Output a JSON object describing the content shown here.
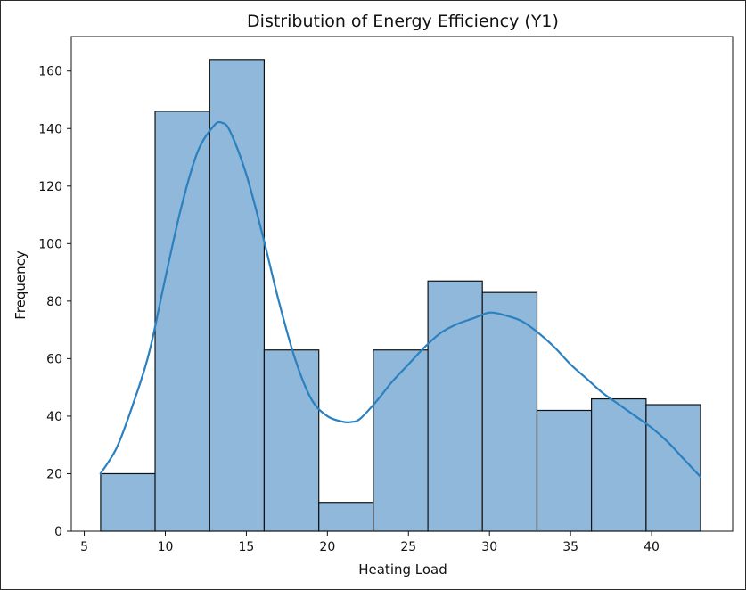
{
  "chart_data": {
    "type": "bar",
    "subtype": "histogram-with-kde",
    "title": "Distribution of Energy Efficiency (Y1)",
    "xlabel": "Heating Load",
    "ylabel": "Frequency",
    "xlim": [
      4.2,
      45.0
    ],
    "ylim": [
      0,
      172
    ],
    "xticks": [
      5,
      10,
      15,
      20,
      25,
      30,
      35,
      40
    ],
    "yticks": [
      0,
      20,
      40,
      60,
      80,
      100,
      120,
      140,
      160
    ],
    "bins": [
      {
        "start": 6.01,
        "end": 9.37,
        "count": 20
      },
      {
        "start": 9.37,
        "end": 12.74,
        "count": 146
      },
      {
        "start": 12.74,
        "end": 16.1,
        "count": 164
      },
      {
        "start": 16.1,
        "end": 19.47,
        "count": 63
      },
      {
        "start": 19.47,
        "end": 22.83,
        "count": 10
      },
      {
        "start": 22.83,
        "end": 26.2,
        "count": 63
      },
      {
        "start": 26.2,
        "end": 29.56,
        "count": 87
      },
      {
        "start": 29.56,
        "end": 32.93,
        "count": 83
      },
      {
        "start": 32.93,
        "end": 36.29,
        "count": 42
      },
      {
        "start": 36.29,
        "end": 39.66,
        "count": 46
      },
      {
        "start": 39.66,
        "end": 43.02,
        "count": 44
      }
    ],
    "kde": {
      "x": [
        6.0,
        7.0,
        8.0,
        9.0,
        10.0,
        11.0,
        12.0,
        13.0,
        13.5,
        14.0,
        15.0,
        16.0,
        17.0,
        18.0,
        19.0,
        20.0,
        21.0,
        21.5,
        22.0,
        23.0,
        24.0,
        25.0,
        26.0,
        27.0,
        28.0,
        29.0,
        30.0,
        31.0,
        32.0,
        33.0,
        34.0,
        35.0,
        36.0,
        37.0,
        38.0,
        39.0,
        40.0,
        41.0,
        42.0,
        43.0
      ],
      "y": [
        20,
        29,
        44,
        62,
        88,
        113,
        132,
        141,
        142,
        139,
        124,
        103,
        80,
        60,
        46,
        40,
        38,
        38,
        39,
        45,
        52,
        58,
        64,
        69,
        72,
        74,
        76,
        75,
        73,
        69,
        64,
        58,
        53,
        48,
        44,
        40,
        36,
        31,
        25,
        19
      ]
    },
    "colors": {
      "bar_fill": "#8fb8da",
      "bar_edge": "#111111",
      "kde_line": "#2b80bf"
    },
    "grid": false,
    "legend": "none"
  }
}
